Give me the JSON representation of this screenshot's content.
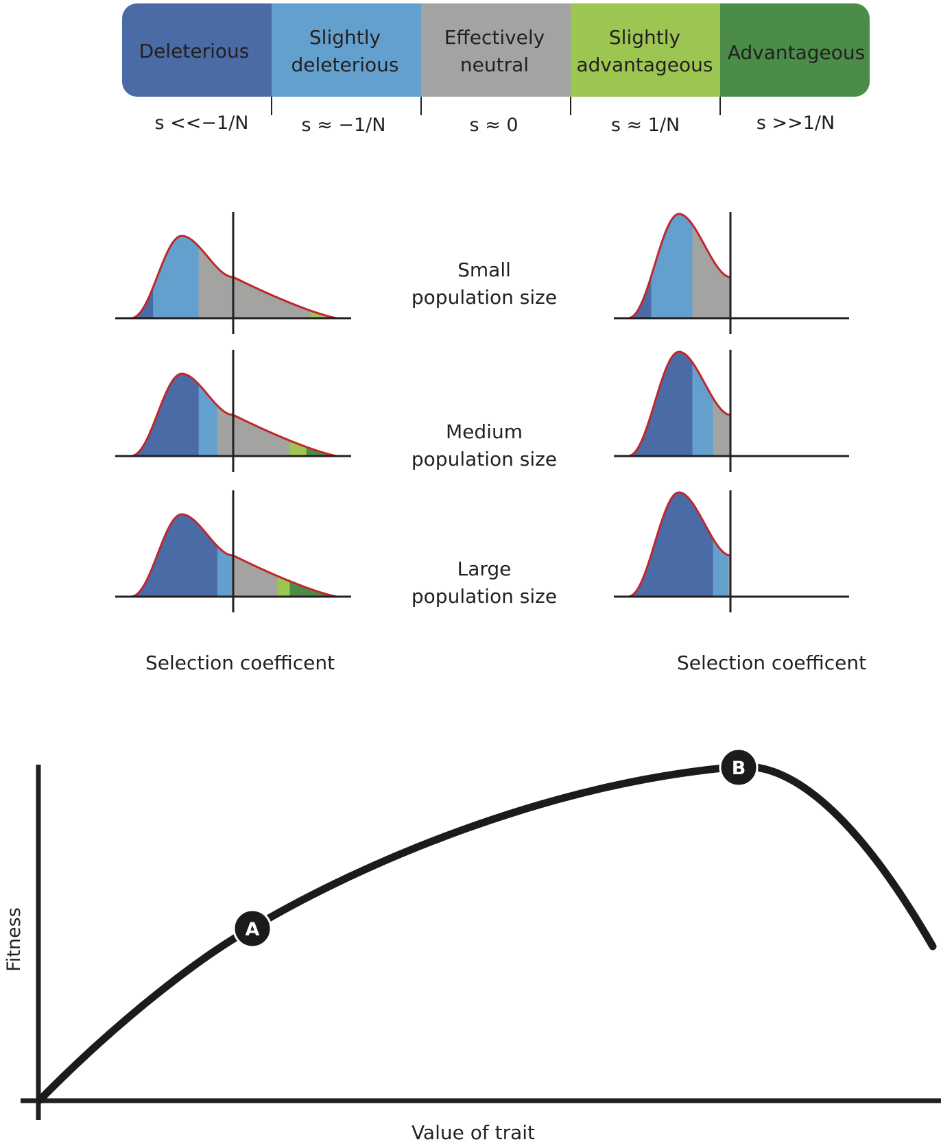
{
  "colors": {
    "deleterious": "#4a6ba5",
    "slightly_deleterious": "#64a0ce",
    "effectively_neutral": "#a3a4a2",
    "slightly_advantageous": "#9cc551",
    "advantageous": "#4a8c48",
    "curve_outline": "#c0272d",
    "axis": "#231f20",
    "marker_fill": "#1b1b1b",
    "marker_text": "#ffffff"
  },
  "legend": {
    "categories": [
      {
        "label_lines": [
          "Deleterious"
        ],
        "formula": "s <<−1/N",
        "color_key": "deleterious"
      },
      {
        "label_lines": [
          "Slightly",
          "deleterious"
        ],
        "formula": "s ≈ −1/N",
        "color_key": "slightly_deleterious"
      },
      {
        "label_lines": [
          "Effectively",
          "neutral"
        ],
        "formula": "s ≈ 0",
        "color_key": "effectively_neutral"
      },
      {
        "label_lines": [
          "Slightly",
          "advantageous"
        ],
        "formula": "s ≈ 1/N",
        "color_key": "slightly_advantageous"
      },
      {
        "label_lines": [
          "Advantageous"
        ],
        "formula": "s >>1/N",
        "color_key": "advantageous"
      }
    ]
  },
  "distributions": {
    "x_label": "Selection coefficent",
    "rows": [
      {
        "label_lines": [
          "Small",
          "population size"
        ],
        "left": {
          "cuts": [
            0.0,
            0.11,
            0.33,
            0.69,
            0.87,
            0.96,
            1.0
          ],
          "colors": [
            "deleterious",
            "slightly_deleterious",
            "effectively_neutral",
            "effectively_neutral",
            "slightly_advantageous",
            "advantageous"
          ]
        },
        "right": {
          "cuts": [
            0.0,
            0.23,
            0.63,
            1.0
          ],
          "colors": [
            "deleterious",
            "slightly_deleterious",
            "effectively_neutral"
          ]
        }
      },
      {
        "label_lines": [
          "Medium",
          "population size"
        ],
        "left": {
          "cuts": [
            0.0,
            0.33,
            0.42,
            0.69,
            0.77,
            0.85,
            1.0
          ],
          "colors": [
            "deleterious",
            "slightly_deleterious",
            "effectively_neutral",
            "effectively_neutral",
            "slightly_advantageous",
            "advantageous"
          ]
        },
        "right": {
          "cuts": [
            0.0,
            0.63,
            0.83,
            1.0
          ],
          "colors": [
            "deleterious",
            "slightly_deleterious",
            "effectively_neutral"
          ]
        }
      },
      {
        "label_lines": [
          "Large",
          "population size"
        ],
        "left": {
          "cuts": [
            0.0,
            0.42,
            0.49,
            0.685,
            0.71,
            0.77,
            1.0
          ],
          "colors": [
            "deleterious",
            "slightly_deleterious",
            "effectively_neutral",
            "effectively_neutral",
            "slightly_advantageous",
            "advantageous"
          ]
        },
        "right": {
          "cuts": [
            0.0,
            0.83,
            0.98,
            1.0
          ],
          "colors": [
            "deleterious",
            "slightly_deleterious",
            "effectively_neutral"
          ]
        }
      }
    ]
  },
  "fitness": {
    "y_label": "Fitness",
    "x_label": "Value of trait",
    "markers": [
      "A",
      "B"
    ]
  }
}
